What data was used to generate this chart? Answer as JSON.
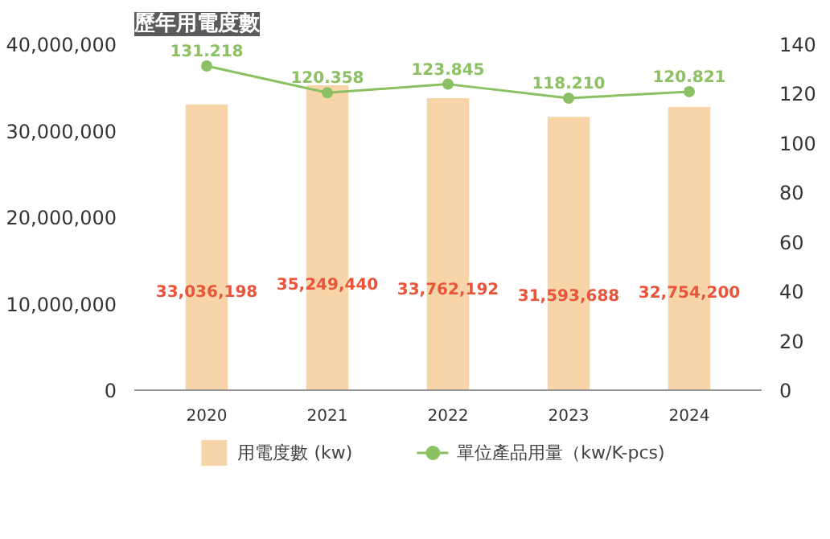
{
  "chart_data": {
    "type": "bar",
    "title": "歷年用電度數",
    "categories": [
      "2020",
      "2021",
      "2022",
      "2023",
      "2024"
    ],
    "series": [
      {
        "name": "用電度數 (kw)",
        "color": "#f8d5a8",
        "values": [
          33036198,
          35249440,
          33762192,
          31593688,
          32754200
        ],
        "value_labels": [
          "33,036,198",
          "35,249,440",
          "33,762,192",
          "31,593,688",
          "32,754,200"
        ]
      },
      {
        "name": "單位產品用量（kw/K-pcs)",
        "type": "line",
        "axis": "y2",
        "color": "#8cc163",
        "values": [
          131.218,
          120.358,
          123.845,
          118.21,
          120.821
        ],
        "value_labels": [
          "131.218",
          "120.358",
          "123.845",
          "118.210",
          "120.821"
        ]
      }
    ],
    "ylim": [
      0,
      40000000
    ],
    "yticks": [
      {
        "value": 0,
        "label": "0"
      },
      {
        "value": 10000000,
        "label": "10,000,000"
      },
      {
        "value": 20000000,
        "label": "20,000,000"
      },
      {
        "value": 30000000,
        "label": "30,000,000"
      },
      {
        "value": 40000000,
        "label": "40,000,000"
      }
    ],
    "y2lim": [
      0,
      140
    ],
    "y2ticks": [
      0,
      20,
      40,
      60,
      80,
      100,
      120,
      140
    ],
    "grid": false,
    "legend": "bottom",
    "marker": "circle",
    "line_style": "solid"
  }
}
